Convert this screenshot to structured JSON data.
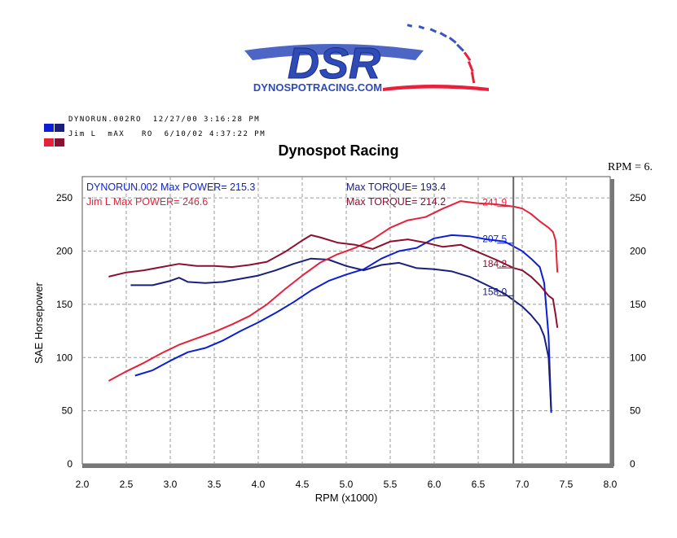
{
  "logo": {
    "main": "DSR",
    "sub": "DYNOSPOTRACING.COM"
  },
  "legend": [
    {
      "label": "DYNORUN.002RO  12/27/00 3:16:28 PM",
      "colors": [
        "#0a1fd6",
        "#1a1f7a"
      ]
    },
    {
      "label": "Jim L  mAX   RO  6/10/02 4:37:22 PM",
      "colors": [
        "#e8203a",
        "#8c1030"
      ]
    }
  ],
  "title": "Dynospot Racing",
  "rpm_readout": "RPM = 6.",
  "chart_data": {
    "type": "line",
    "title": "Dynospot Racing",
    "xlabel": "RPM (x1000)",
    "ylabel": "SAE Horsepower",
    "xlim": [
      2.0,
      8.0
    ],
    "ylim": [
      0,
      270
    ],
    "xticks": [
      "2.0",
      "2.5",
      "3.0",
      "3.5",
      "4.0",
      "4.5",
      "5.0",
      "5.5",
      "6.0",
      "6.5",
      "7.0",
      "7.5",
      "8.0"
    ],
    "yticks": [
      "0",
      "50",
      "100",
      "150",
      "200",
      "250"
    ],
    "grid": true,
    "cursor_rpm": 6.9,
    "annotations": [
      {
        "text": "DYNORUN.002  Max POWER= 215.3",
        "color": "#0a1fd6"
      },
      {
        "text": "Max TORQUE= 193.4",
        "color": "#1a1f7a"
      },
      {
        "text": "Jim L  Max POWER= 246.6",
        "color": "#e8203a"
      },
      {
        "text": "Max TORQUE= 214.2",
        "color": "#8c1030"
      }
    ],
    "cursor_values": [
      {
        "text": "241.9",
        "x": 6.9,
        "y": 241.9,
        "color": "#e8203a"
      },
      {
        "text": "207.5",
        "x": 6.9,
        "y": 207.5,
        "color": "#0a1fd6"
      },
      {
        "text": "184.2",
        "x": 6.9,
        "y": 184.2,
        "color": "#8c1030"
      },
      {
        "text": "158.0",
        "x": 6.9,
        "y": 158.0,
        "color": "#1a1f7a"
      }
    ],
    "series": [
      {
        "color": "#0a1fd6",
        "x": [
          2.6,
          2.8,
          3.0,
          3.2,
          3.4,
          3.6,
          3.8,
          4.0,
          4.2,
          4.4,
          4.6,
          4.8,
          5.0,
          5.2,
          5.4,
          5.6,
          5.8,
          6.0,
          6.2,
          6.4,
          6.6,
          6.8,
          7.0,
          7.1,
          7.2,
          7.25,
          7.3,
          7.33
        ],
        "y": [
          83,
          88,
          97,
          105,
          109,
          116,
          125,
          133,
          142,
          152,
          163,
          172,
          178,
          183,
          193,
          200,
          203,
          212,
          215,
          214,
          211,
          209,
          200,
          193,
          185,
          170,
          120,
          48
        ]
      },
      {
        "color": "#1a1f7a",
        "x": [
          2.55,
          2.8,
          3.0,
          3.1,
          3.2,
          3.4,
          3.6,
          3.8,
          4.0,
          4.2,
          4.4,
          4.6,
          4.8,
          5.0,
          5.2,
          5.4,
          5.6,
          5.8,
          6.0,
          6.2,
          6.4,
          6.6,
          6.8,
          7.0,
          7.1,
          7.2,
          7.25,
          7.3,
          7.33
        ],
        "y": [
          168,
          168,
          172,
          175,
          171,
          170,
          171,
          174,
          177,
          182,
          188,
          193,
          192,
          186,
          182,
          187,
          189,
          184,
          183,
          181,
          176,
          168,
          160,
          148,
          140,
          130,
          120,
          100,
          50
        ]
      },
      {
        "color": "#e8203a",
        "x": [
          2.3,
          2.5,
          2.7,
          2.9,
          3.1,
          3.3,
          3.5,
          3.7,
          3.9,
          4.1,
          4.3,
          4.5,
          4.7,
          4.9,
          5.1,
          5.3,
          5.5,
          5.7,
          5.9,
          6.1,
          6.3,
          6.5,
          6.7,
          6.9,
          7.0,
          7.1,
          7.2,
          7.3,
          7.35,
          7.38,
          7.4
        ],
        "y": [
          78,
          87,
          95,
          104,
          112,
          118,
          124,
          131,
          139,
          150,
          164,
          177,
          189,
          197,
          203,
          211,
          222,
          229,
          232,
          240,
          247,
          245,
          244,
          241.9,
          240,
          235,
          228,
          222,
          218,
          210,
          180
        ]
      },
      {
        "color": "#8c1030",
        "x": [
          2.3,
          2.5,
          2.7,
          2.9,
          3.1,
          3.3,
          3.5,
          3.7,
          3.9,
          4.1,
          4.3,
          4.5,
          4.6,
          4.7,
          4.9,
          5.1,
          5.3,
          5.5,
          5.7,
          5.9,
          6.1,
          6.3,
          6.5,
          6.7,
          6.9,
          7.0,
          7.1,
          7.2,
          7.3,
          7.35,
          7.38,
          7.4
        ],
        "y": [
          176,
          180,
          182,
          185,
          188,
          186,
          186,
          185,
          187,
          190,
          199,
          210,
          215,
          213,
          208,
          206,
          202,
          209,
          211,
          208,
          204,
          206,
          199,
          192,
          184.2,
          182,
          176,
          168,
          158,
          155,
          140,
          128
        ]
      }
    ]
  }
}
